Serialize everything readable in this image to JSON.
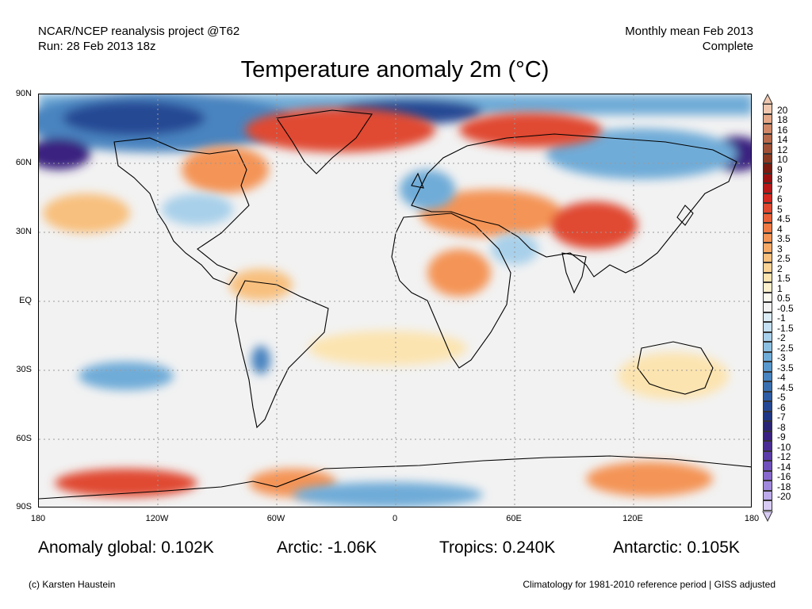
{
  "header": {
    "model_line": "NCAR/NCEP reanalysis project @T62",
    "run_line": "Run: 28 Feb 2013 18z",
    "period_line": "Monthly mean Feb 2013",
    "status_line": "Complete"
  },
  "title": "Temperature anomaly 2m (°C)",
  "lat_labels": [
    "90N",
    "60N",
    "30N",
    "EQ",
    "30S",
    "60S",
    "90S"
  ],
  "lon_labels": [
    "180",
    "120W",
    "60W",
    "0",
    "60E",
    "120E",
    "180"
  ],
  "stats": {
    "global": "Anomaly global: 0.102K",
    "arctic": "Arctic: -1.06K",
    "tropics": "Tropics: 0.240K",
    "antarctic": "Antarctic: 0.105K"
  },
  "footer": {
    "credit": "(c) Karsten Haustein",
    "climatology": "Climatology for 1981-2010 reference period | GISS adjusted"
  },
  "colorbar": {
    "labels": [
      "20",
      "18",
      "16",
      "14",
      "12",
      "10",
      "9",
      "8",
      "7",
      "6",
      "5",
      "4.5",
      "4",
      "3.5",
      "3",
      "2.5",
      "2",
      "1.5",
      "1",
      "0.5",
      "-0.5",
      "-1",
      "-1.5",
      "-2",
      "-2.5",
      "-3",
      "-3.5",
      "-4",
      "-4.5",
      "-5",
      "-6",
      "-7",
      "-8",
      "-9",
      "-10",
      "-12",
      "-14",
      "-16",
      "-18",
      "-20"
    ],
    "colors": [
      "#f0c8b0",
      "#e4a888",
      "#d08868",
      "#b86a4c",
      "#a05036",
      "#8a3a22",
      "#7a1a10",
      "#9a1010",
      "#b81818",
      "#d42820",
      "#e04830",
      "#ea6038",
      "#f07a44",
      "#f49456",
      "#f6aa68",
      "#f8c07e",
      "#fad396",
      "#fce4b0",
      "#fdf0cc",
      "#fbf8ee",
      "#f2f2f2",
      "#dcecf6",
      "#c4e0f2",
      "#a8d0ea",
      "#8cc0e2",
      "#70acd8",
      "#5898cc",
      "#4884c0",
      "#3a70b0",
      "#2e5ca4",
      "#264894",
      "#1e3684",
      "#2a2474",
      "#3a2080",
      "#4a2c94",
      "#5c3ca8",
      "#7050bc",
      "#8868cc",
      "#a088dc",
      "#bcaaea",
      "#d8ccf4"
    ]
  },
  "map_layers": {
    "palette": {
      "cool1": "#dcecf6",
      "cool2": "#c4e0f2",
      "cool3": "#a8d0ea",
      "cool4": "#70acd8",
      "cool5": "#4884c0",
      "cool6": "#264894",
      "cool7": "#3a2080",
      "warm1": "#fce4b0",
      "warm2": "#f8c07e",
      "warm3": "#f49456",
      "warm4": "#e04830",
      "warm5": "#b81818",
      "coast": "#000000",
      "grid": "#9a9a9a"
    }
  }
}
